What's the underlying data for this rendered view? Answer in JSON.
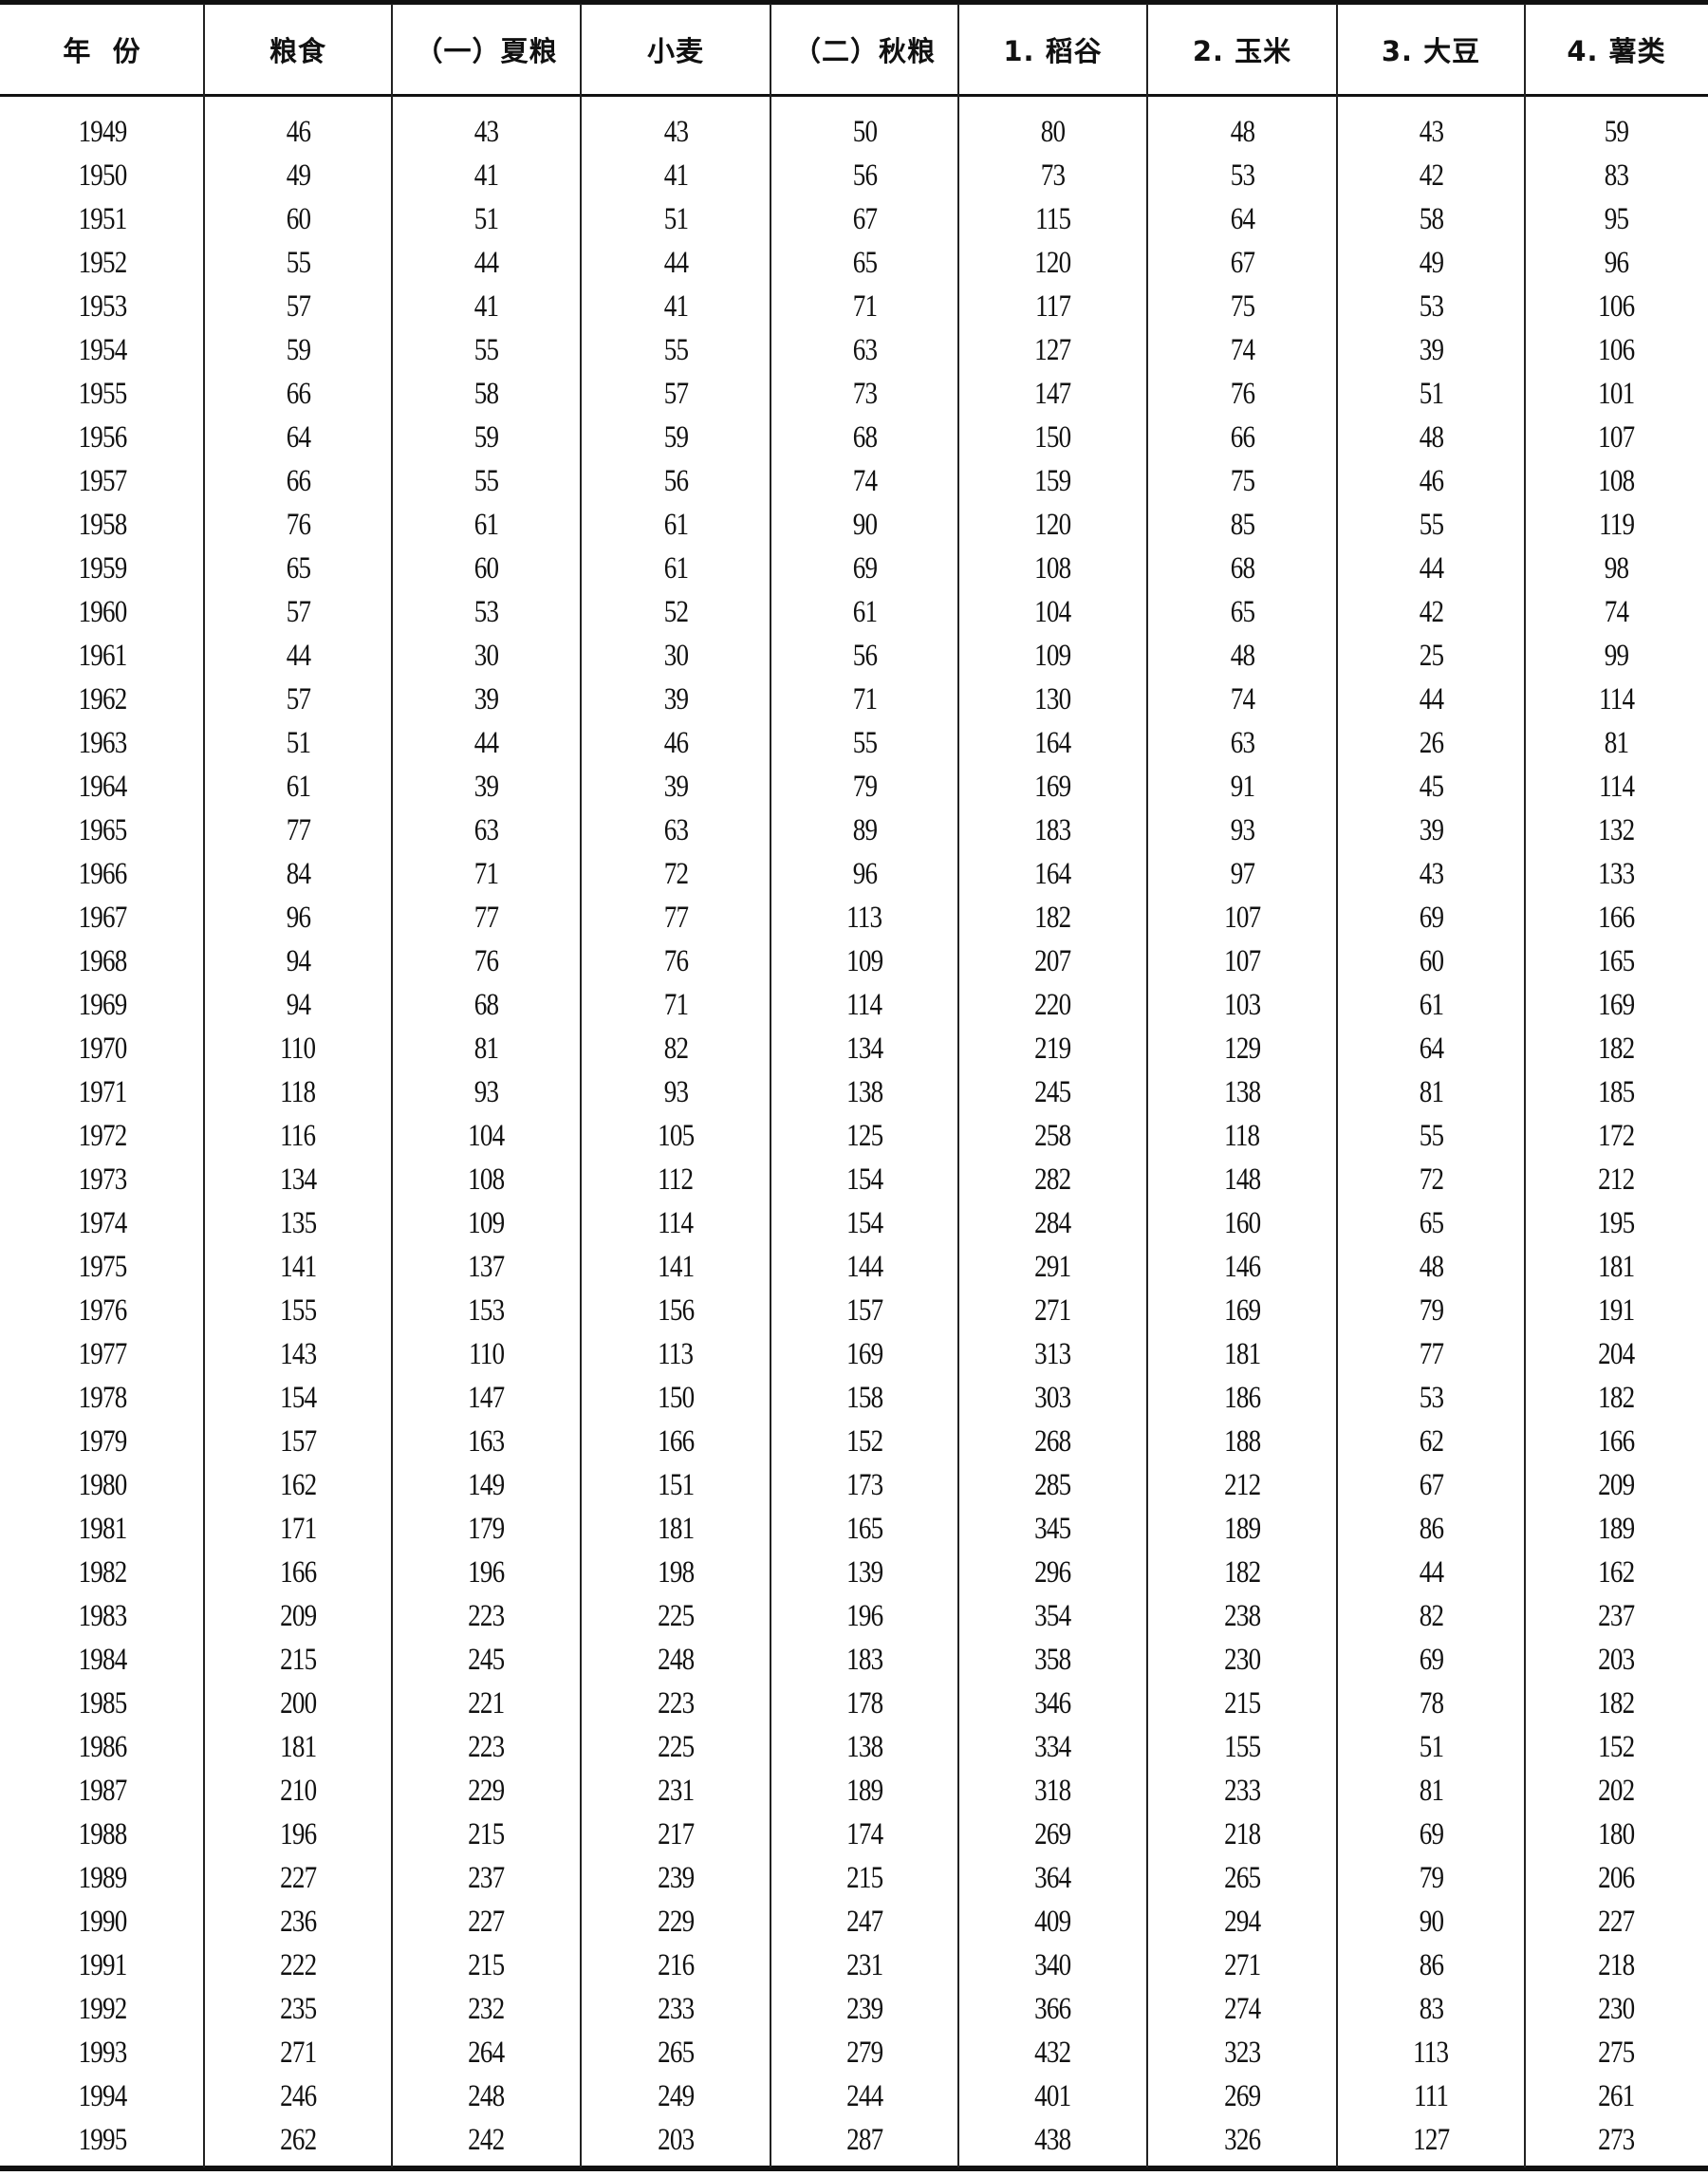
{
  "table": {
    "headers": [
      "年  份",
      "粮食",
      "（一）夏粮",
      "小麦",
      "（二）秋粮",
      "1. 稻谷",
      "2. 玉米",
      "3. 大豆",
      "4. 薯类"
    ],
    "rows": [
      [
        "1949",
        "46",
        "43",
        "43",
        "50",
        "80",
        "48",
        "43",
        "59"
      ],
      [
        "1950",
        "49",
        "41",
        "41",
        "56",
        "73",
        "53",
        "42",
        "83"
      ],
      [
        "1951",
        "60",
        "51",
        "51",
        "67",
        "115",
        "64",
        "58",
        "95"
      ],
      [
        "1952",
        "55",
        "44",
        "44",
        "65",
        "120",
        "67",
        "49",
        "96"
      ],
      [
        "1953",
        "57",
        "41",
        "41",
        "71",
        "117",
        "75",
        "53",
        "106"
      ],
      [
        "1954",
        "59",
        "55",
        "55",
        "63",
        "127",
        "74",
        "39",
        "106"
      ],
      [
        "1955",
        "66",
        "58",
        "57",
        "73",
        "147",
        "76",
        "51",
        "101"
      ],
      [
        "1956",
        "64",
        "59",
        "59",
        "68",
        "150",
        "66",
        "48",
        "107"
      ],
      [
        "1957",
        "66",
        "55",
        "56",
        "74",
        "159",
        "75",
        "46",
        "108"
      ],
      [
        "1958",
        "76",
        "61",
        "61",
        "90",
        "120",
        "85",
        "55",
        "119"
      ],
      [
        "1959",
        "65",
        "60",
        "61",
        "69",
        "108",
        "68",
        "44",
        "98"
      ],
      [
        "1960",
        "57",
        "53",
        "52",
        "61",
        "104",
        "65",
        "42",
        "74"
      ],
      [
        "1961",
        "44",
        "30",
        "30",
        "56",
        "109",
        "48",
        "25",
        "99"
      ],
      [
        "1962",
        "57",
        "39",
        "39",
        "71",
        "130",
        "74",
        "44",
        "114"
      ],
      [
        "1963",
        "51",
        "44",
        "46",
        "55",
        "164",
        "63",
        "26",
        "81"
      ],
      [
        "1964",
        "61",
        "39",
        "39",
        "79",
        "169",
        "91",
        "45",
        "114"
      ],
      [
        "1965",
        "77",
        "63",
        "63",
        "89",
        "183",
        "93",
        "39",
        "132"
      ],
      [
        "1966",
        "84",
        "71",
        "72",
        "96",
        "164",
        "97",
        "43",
        "133"
      ],
      [
        "1967",
        "96",
        "77",
        "77",
        "113",
        "182",
        "107",
        "69",
        "166"
      ],
      [
        "1968",
        "94",
        "76",
        "76",
        "109",
        "207",
        "107",
        "60",
        "165"
      ],
      [
        "1969",
        "94",
        "68",
        "71",
        "114",
        "220",
        "103",
        "61",
        "169"
      ],
      [
        "1970",
        "110",
        "81",
        "82",
        "134",
        "219",
        "129",
        "64",
        "182"
      ],
      [
        "1971",
        "118",
        "93",
        "93",
        "138",
        "245",
        "138",
        "81",
        "185"
      ],
      [
        "1972",
        "116",
        "104",
        "105",
        "125",
        "258",
        "118",
        "55",
        "172"
      ],
      [
        "1973",
        "134",
        "108",
        "112",
        "154",
        "282",
        "148",
        "72",
        "212"
      ],
      [
        "1974",
        "135",
        "109",
        "114",
        "154",
        "284",
        "160",
        "65",
        "195"
      ],
      [
        "1975",
        "141",
        "137",
        "141",
        "144",
        "291",
        "146",
        "48",
        "181"
      ],
      [
        "1976",
        "155",
        "153",
        "156",
        "157",
        "271",
        "169",
        "79",
        "191"
      ],
      [
        "1977",
        "143",
        "110",
        "113",
        "169",
        "313",
        "181",
        "77",
        "204"
      ],
      [
        "1978",
        "154",
        "147",
        "150",
        "158",
        "303",
        "186",
        "53",
        "182"
      ],
      [
        "1979",
        "157",
        "163",
        "166",
        "152",
        "268",
        "188",
        "62",
        "166"
      ],
      [
        "1980",
        "162",
        "149",
        "151",
        "173",
        "285",
        "212",
        "67",
        "209"
      ],
      [
        "1981",
        "171",
        "179",
        "181",
        "165",
        "345",
        "189",
        "86",
        "189"
      ],
      [
        "1982",
        "166",
        "196",
        "198",
        "139",
        "296",
        "182",
        "44",
        "162"
      ],
      [
        "1983",
        "209",
        "223",
        "225",
        "196",
        "354",
        "238",
        "82",
        "237"
      ],
      [
        "1984",
        "215",
        "245",
        "248",
        "183",
        "358",
        "230",
        "69",
        "203"
      ],
      [
        "1985",
        "200",
        "221",
        "223",
        "178",
        "346",
        "215",
        "78",
        "182"
      ],
      [
        "1986",
        "181",
        "223",
        "225",
        "138",
        "334",
        "155",
        "51",
        "152"
      ],
      [
        "1987",
        "210",
        "229",
        "231",
        "189",
        "318",
        "233",
        "81",
        "202"
      ],
      [
        "1988",
        "196",
        "215",
        "217",
        "174",
        "269",
        "218",
        "69",
        "180"
      ],
      [
        "1989",
        "227",
        "237",
        "239",
        "215",
        "364",
        "265",
        "79",
        "206"
      ],
      [
        "1990",
        "236",
        "227",
        "229",
        "247",
        "409",
        "294",
        "90",
        "227"
      ],
      [
        "1991",
        "222",
        "215",
        "216",
        "231",
        "340",
        "271",
        "86",
        "218"
      ],
      [
        "1992",
        "235",
        "232",
        "233",
        "239",
        "366",
        "274",
        "83",
        "230"
      ],
      [
        "1993",
        "271",
        "264",
        "265",
        "279",
        "432",
        "323",
        "113",
        "275"
      ],
      [
        "1994",
        "246",
        "248",
        "249",
        "244",
        "401",
        "269",
        "111",
        "261"
      ],
      [
        "1995",
        "262",
        "242",
        "203",
        "287",
        "438",
        "326",
        "127",
        "273"
      ]
    ]
  }
}
